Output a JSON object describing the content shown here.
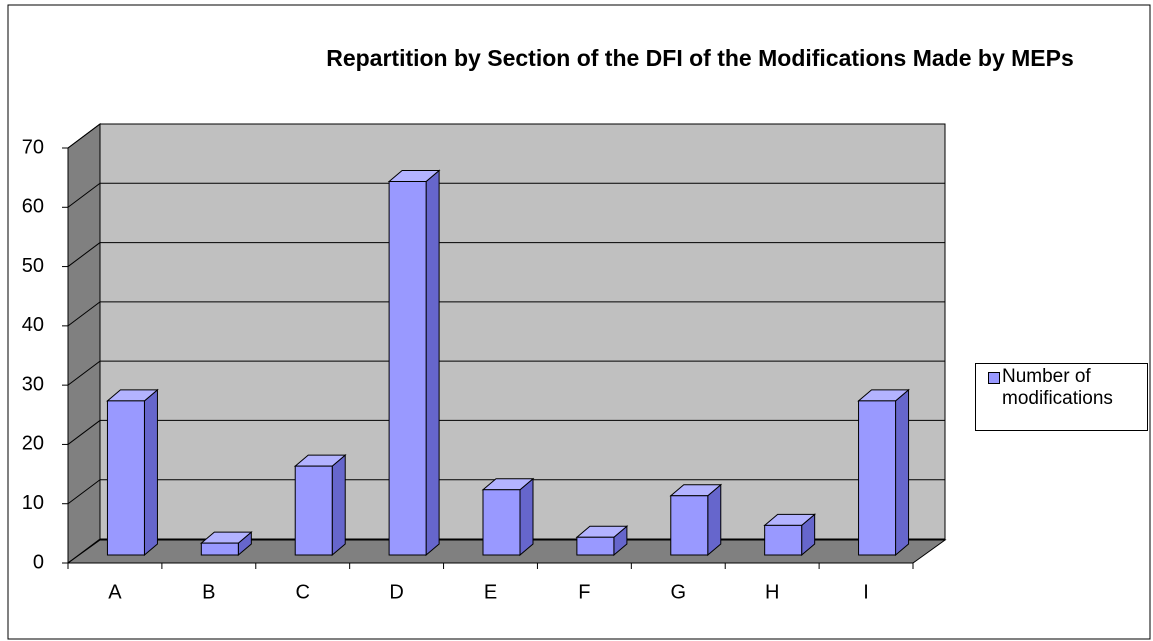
{
  "chart_data": {
    "type": "bar3d",
    "title": "Repartition by Section of the DFI of the Modifications Made by MEPs",
    "categories": [
      "A",
      "B",
      "C",
      "D",
      "E",
      "F",
      "G",
      "H",
      "I"
    ],
    "series": [
      {
        "name": "Number of modifications",
        "color": "#9999ff",
        "values": [
          26,
          2,
          15,
          63,
          11,
          3,
          10,
          5,
          26
        ]
      }
    ],
    "ylim": [
      0,
      70
    ],
    "yticks": [
      0,
      10,
      20,
      30,
      40,
      50,
      60,
      70
    ],
    "grid": true,
    "legend": "right"
  }
}
